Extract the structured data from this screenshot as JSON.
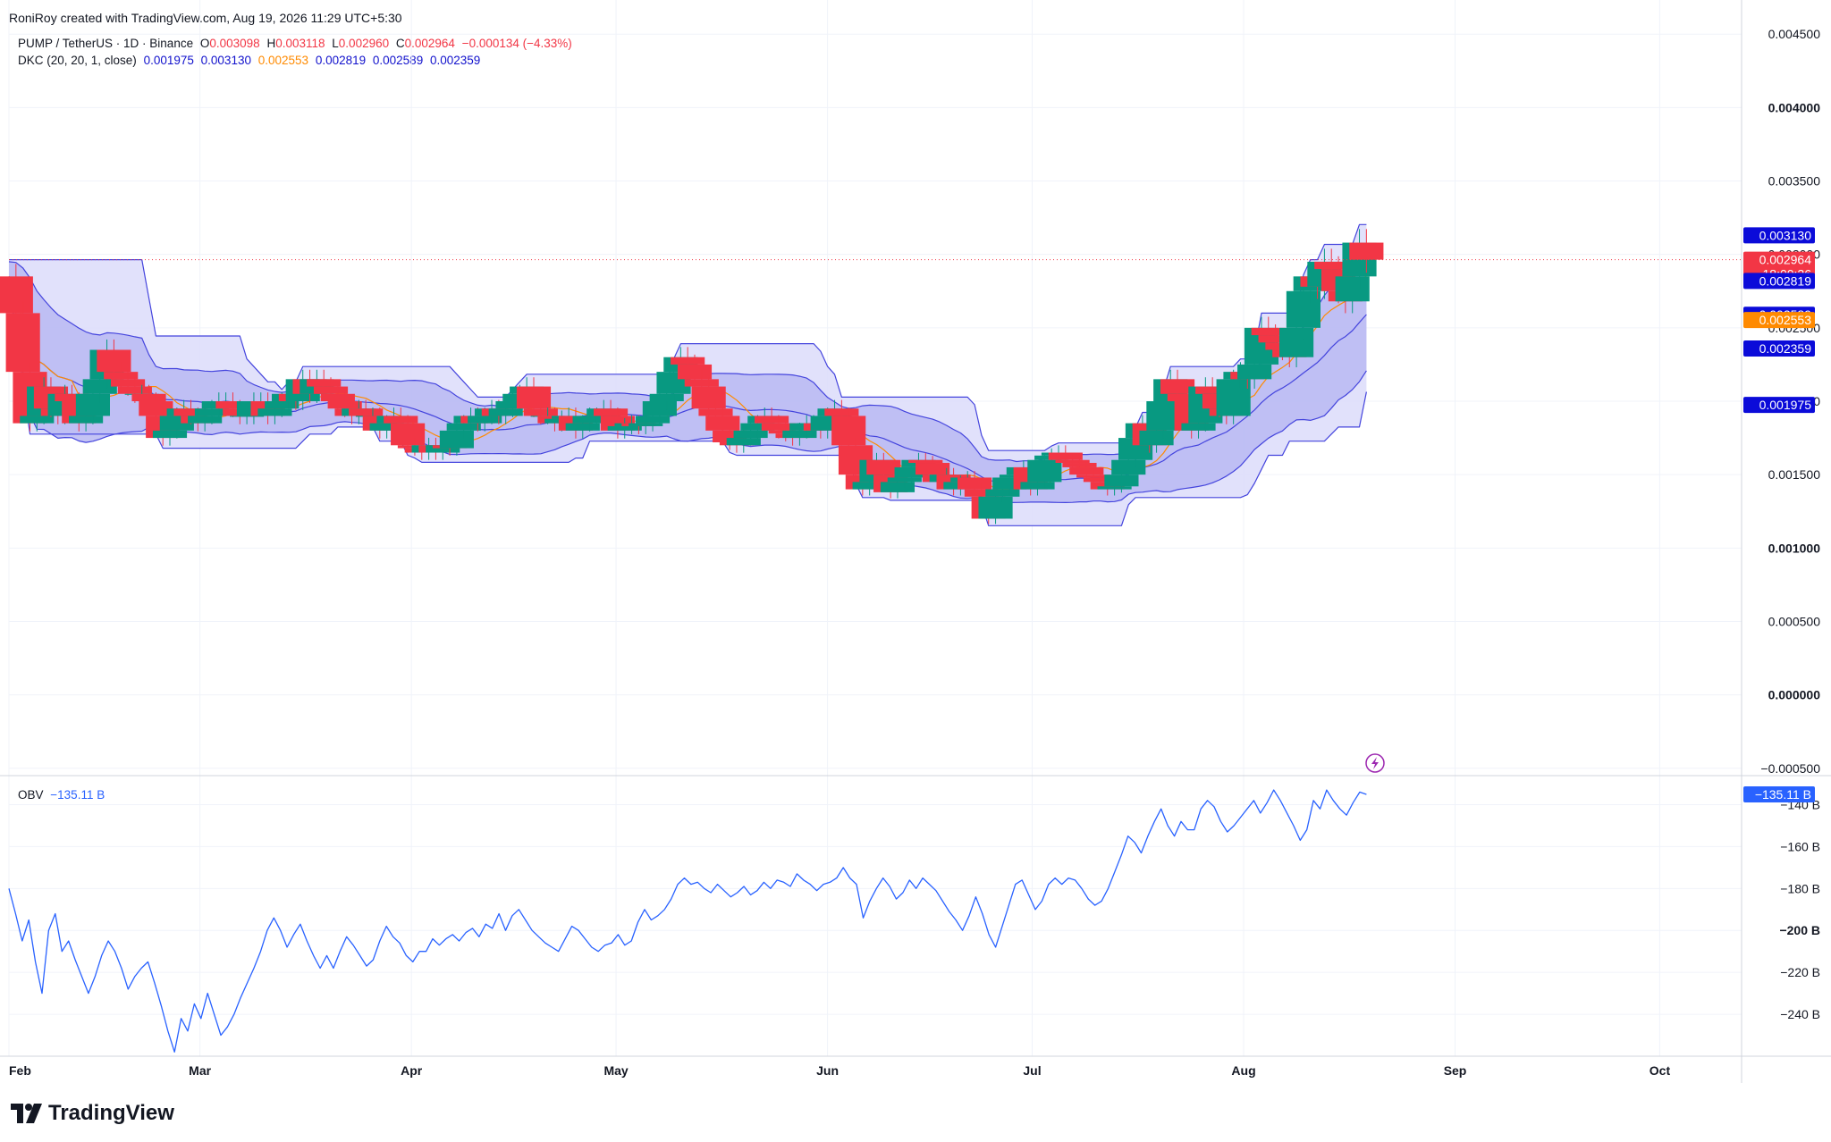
{
  "header": {
    "attribution": "RoniRoy created with TradingView.com, Aug 19, 2026 11:29 UTC+5:30"
  },
  "legend": {
    "symbol": "PUMP / TetherUS · 1D · Binance",
    "o_label": "O",
    "o_value": "0.003098",
    "h_label": "H",
    "h_value": "0.003118",
    "l_label": "L",
    "l_value": "0.002960",
    "c_label": "C",
    "c_value": "0.002964",
    "change": "−0.000134 (−4.33%)",
    "dkc_label": "DKC (20, 20, 1, close)",
    "dkc_values": [
      "0.001975",
      "0.003130",
      "0.002553",
      "0.002819",
      "0.002589",
      "0.002359"
    ],
    "obv_label": "OBV",
    "obv_value": "−135.11 B"
  },
  "colors": {
    "up": "#089981",
    "down": "#f23645",
    "channel": "#4444dd",
    "channel_fill": "#dcdcfa",
    "channel_inner_fill": "#b8b8f2",
    "basis": "#ff8a00",
    "obv": "#2962ff"
  },
  "price_tags": [
    {
      "text": "0.003130",
      "color": "#0b0bd9",
      "value": 0.00313
    },
    {
      "text": "0.002964",
      "text2": "18:00:26",
      "color": "#f23645",
      "value": 0.002964
    },
    {
      "text": "0.002819",
      "color": "#0b0bd9",
      "value": 0.002819
    },
    {
      "text": "0.002589",
      "color": "#0b0bd9",
      "value": 0.002589
    },
    {
      "text": "0.002553",
      "color": "#ff8a00",
      "value": 0.002553
    },
    {
      "text": "0.002359",
      "color": "#0b0bd9",
      "value": 0.002359
    },
    {
      "text": "0.001975",
      "color": "#0b0bd9",
      "value": 0.001975
    }
  ],
  "obv_tag": {
    "text": "−135.11 B",
    "color": "#2962ff",
    "value": -135.11
  },
  "brand": {
    "name": "TradingView"
  },
  "chart_data": [
    {
      "type": "candlestick",
      "title": "PUMP / TetherUS · 1D · Binance",
      "y_ticks": [
        "0.004500",
        "0.004000",
        "0.003500",
        "0.003000",
        "0.002500",
        "0.002000",
        "0.001500",
        "0.001000",
        "0.000500",
        "0.000000",
        "−0.000500"
      ],
      "y_tick_values": [
        0.0045,
        0.004,
        0.0035,
        0.003,
        0.0025,
        0.002,
        0.0015,
        0.001,
        0.0005,
        0.0,
        -0.0005
      ],
      "bold_ticks": [
        "0.004000",
        "0.001000",
        "0.000000"
      ],
      "ylim": [
        -0.00055,
        0.00455
      ],
      "x_ticks": [
        "Feb",
        "Mar",
        "Apr",
        "May",
        "Jun",
        "Jul",
        "Aug",
        "Sep",
        "Oct"
      ],
      "x_tick_days": [
        0,
        28,
        59,
        89,
        120,
        150,
        181,
        212,
        242
      ],
      "xlim_days": [
        0,
        254
      ],
      "last_day": 199,
      "closes": [
        0.00285,
        0.0026,
        0.0022,
        0.00185,
        0.0019,
        0.0021,
        0.00195,
        0.0019,
        0.00205,
        0.002,
        0.00185,
        0.0019,
        0.00205,
        0.00215,
        0.00235,
        0.0022,
        0.00215,
        0.0021,
        0.00205,
        0.00205,
        0.002,
        0.0019,
        0.00175,
        0.0018,
        0.0019,
        0.00195,
        0.0019,
        0.00185,
        0.0019,
        0.00195,
        0.002,
        0.002,
        0.00195,
        0.0019,
        0.0019,
        0.002,
        0.002,
        0.0019,
        0.00195,
        0.002,
        0.00205,
        0.002,
        0.00215,
        0.00205,
        0.00215,
        0.0021,
        0.00205,
        0.002,
        0.00195,
        0.0019,
        0.00195,
        0.0019,
        0.0019,
        0.0018,
        0.00185,
        0.0019,
        0.00185,
        0.0017,
        0.00168,
        0.00165,
        0.0017,
        0.00165,
        0.0017,
        0.00168,
        0.0018,
        0.00185,
        0.0019,
        0.00185,
        0.0019,
        0.00195,
        0.0019,
        0.00195,
        0.002,
        0.00205,
        0.0021,
        0.00195,
        0.0019,
        0.0019,
        0.00185,
        0.00188,
        0.0019,
        0.0018,
        0.00185,
        0.0019,
        0.0019,
        0.00195,
        0.0019,
        0.0018,
        0.00183,
        0.00185,
        0.00183,
        0.00185,
        0.0019,
        0.002,
        0.00205,
        0.0022,
        0.0023,
        0.00225,
        0.00215,
        0.0021,
        0.00195,
        0.0019,
        0.0018,
        0.00172,
        0.0017,
        0.00175,
        0.0018,
        0.00185,
        0.0019,
        0.00185,
        0.0018,
        0.00178,
        0.00175,
        0.0018,
        0.00185,
        0.00185,
        0.0018,
        0.0019,
        0.00195,
        0.0019,
        0.0017,
        0.0015,
        0.0014,
        0.00145,
        0.0016,
        0.0015,
        0.00138,
        0.00145,
        0.00148,
        0.00155,
        0.0016,
        0.00158,
        0.0015,
        0.00145,
        0.0015,
        0.0014,
        0.00145,
        0.00148,
        0.0014,
        0.00135,
        0.0012,
        0.00135,
        0.0014,
        0.00148,
        0.0015,
        0.00155,
        0.0014,
        0.00145,
        0.0016,
        0.00163,
        0.00165,
        0.0016,
        0.00158,
        0.00155,
        0.0015,
        0.00148,
        0.00145,
        0.0014,
        0.00142,
        0.0015,
        0.0016,
        0.00175,
        0.00185,
        0.0017,
        0.0018,
        0.002,
        0.00215,
        0.00205,
        0.002,
        0.0018,
        0.00185,
        0.0021,
        0.00205,
        0.00195,
        0.0019,
        0.00215,
        0.0022,
        0.00215,
        0.00225,
        0.0025,
        0.00245,
        0.0024,
        0.00235,
        0.0023,
        0.0025,
        0.00275,
        0.00285,
        0.00278,
        0.00295,
        0.0029,
        0.00275,
        0.00268,
        0.00285,
        0.00308,
        0.002964
      ]
    },
    {
      "type": "line",
      "title": "OBV",
      "y_ticks": [
        "−140 B",
        "−160 B",
        "−180 B",
        "−200 B",
        "−220 B",
        "−240 B"
      ],
      "y_tick_values": [
        -140,
        -160,
        -180,
        -200,
        -220,
        -240
      ],
      "bold_ticks": [
        "−200 B"
      ],
      "ylim": [
        -260,
        -127
      ],
      "values": [
        -180,
        -192,
        -205,
        -195,
        -215,
        -230,
        -200,
        -192,
        -210,
        -205,
        -214,
        -222,
        -230,
        -222,
        -212,
        -205,
        -210,
        -218,
        -228,
        -222,
        -218,
        -215,
        -225,
        -236,
        -248,
        -258,
        -242,
        -248,
        -235,
        -242,
        -230,
        -240,
        -250,
        -246,
        -240,
        -232,
        -225,
        -218,
        -210,
        -200,
        -194,
        -200,
        -208,
        -202,
        -197,
        -205,
        -212,
        -218,
        -212,
        -218,
        -210,
        -203,
        -207,
        -212,
        -217,
        -214,
        -205,
        -198,
        -203,
        -206,
        -212,
        -215,
        -210,
        -210,
        -204,
        -207,
        -204,
        -202,
        -205,
        -201,
        -199,
        -203,
        -197,
        -199,
        -192,
        -200,
        -193,
        -190,
        -195,
        -200,
        -203,
        -206,
        -208,
        -210,
        -204,
        -198,
        -200,
        -204,
        -208,
        -210,
        -207,
        -206,
        -202,
        -207,
        -205,
        -196,
        -190,
        -195,
        -193,
        -190,
        -185,
        -178,
        -175,
        -178,
        -177,
        -180,
        -182,
        -178,
        -181,
        -184,
        -182,
        -179,
        -183,
        -181,
        -177,
        -180,
        -176,
        -177,
        -179,
        -173,
        -176,
        -178,
        -181,
        -178,
        -177,
        -175,
        -170,
        -175,
        -178,
        -194,
        -186,
        -180,
        -175,
        -179,
        -185,
        -182,
        -176,
        -180,
        -175,
        -178,
        -181,
        -186,
        -191,
        -195,
        -200,
        -193,
        -184,
        -192,
        -202,
        -208,
        -198,
        -188,
        -178,
        -176,
        -183,
        -190,
        -186,
        -178,
        -175,
        -178,
        -175,
        -176,
        -180,
        -185,
        -188,
        -186,
        -180,
        -172,
        -164,
        -155,
        -158,
        -163,
        -155,
        -148,
        -142,
        -150,
        -155,
        -148,
        -152,
        -152,
        -142,
        -138,
        -141,
        -148,
        -153,
        -150,
        -146,
        -142,
        -138,
        -144,
        -139,
        -133,
        -138,
        -144,
        -150,
        -157,
        -152,
        -138,
        -142,
        -133,
        -138,
        -142,
        -145,
        -139,
        -134,
        -135.11
      ]
    }
  ]
}
